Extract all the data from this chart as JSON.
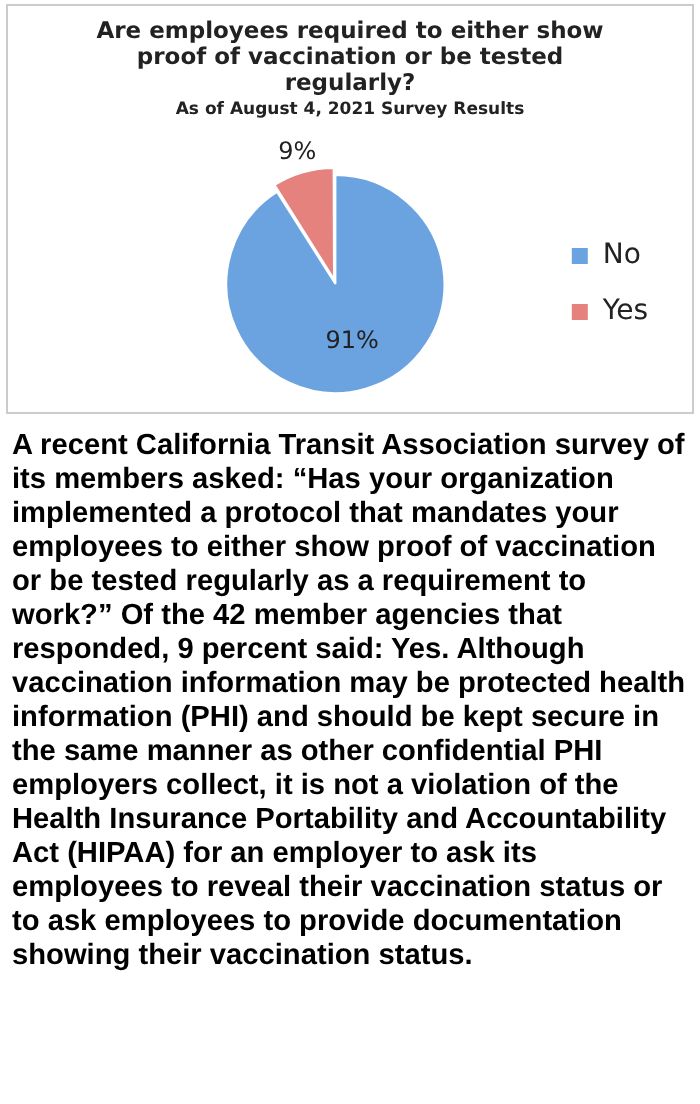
{
  "chart_data": {
    "type": "pie",
    "title": "Are employees required to either show proof of vaccination or be tested regularly?",
    "subtitle": "As of August 4, 2021 Survey Results",
    "categories": [
      "No",
      "Yes"
    ],
    "values": [
      91,
      9
    ],
    "colors": [
      "#6aa3e0",
      "#e6827e"
    ],
    "value_labels": [
      "91%",
      "9%"
    ],
    "legend": "right",
    "annotations": [
      "A recent California Transit Association survey of its members asked: “Has your organization implemented a protocol that mandates your employees to either show proof of vaccination or be tested regularly as a requirement to work?” Of the 42 member agencies that responded, 9 percent said: Yes. Although vaccination information may be protected health information (PHI) and should be kept secure in the same manner as other confidential PHI employers collect, it is not a violation of the Health Insurance Portability and Accountability Act (HIPAA) for an employer to ask its employees to reveal their vaccination status or to ask employees to provide documentation showing their vaccination status."
    ]
  }
}
